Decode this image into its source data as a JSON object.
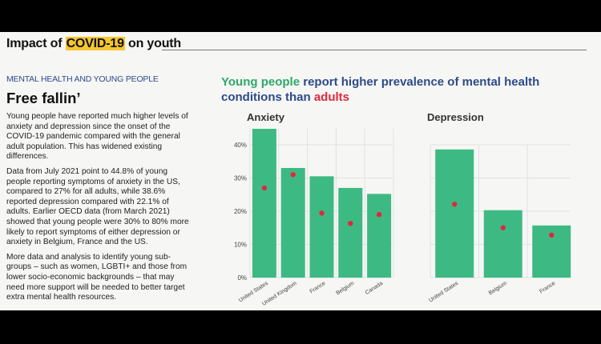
{
  "header": {
    "prefix": "Impact of",
    "highlight": "COVID-19",
    "suffix": "on youth"
  },
  "article": {
    "kicker": "MENTAL HEALTH AND YOUNG PEOPLE",
    "title": "Free fallin’",
    "paragraphs": [
      "Young people have reported much higher levels of anxiety and depression since the onset of the COVID-19 pandemic compared with the general adult population. This has widened existing differences.",
      "Data from July 2021 point to 44.8% of young people reporting symptoms of anxiety in the US, compared to 27% for all adults, while 38.6% reported depression compared with 22.1% of adults. Earlier OECD data (from March 2021) showed that young people were 30% to 80% more likely to report symptoms of either depression or anxiety in Belgium, France and the US.",
      "More data and analysis to identify young sub-groups – such as women, LGBTI+ and those from lower socio-economic backgrounds – that may need more support will be needed to better target extra mental health resources."
    ]
  },
  "chart_heading": {
    "part1": "Young people",
    "part2": "report higher prevalence of mental health conditions than",
    "part3": "adults"
  },
  "colors": {
    "young": "#3dba83",
    "adults": "#e0283d",
    "navy": "#2e4a8a",
    "highlight": "#f4c630"
  },
  "chart_data": [
    {
      "type": "bar",
      "title": "Anxiety",
      "categories": [
        "United States",
        "United Kingdom",
        "France",
        "Belgium",
        "Canada"
      ],
      "series": [
        {
          "name": "Young people",
          "values": [
            44.8,
            33,
            30.5,
            27,
            25.2
          ]
        },
        {
          "name": "adults",
          "values": [
            27,
            31,
            19.4,
            16.3,
            19
          ]
        }
      ],
      "ylim": [
        0,
        44.8
      ],
      "yticks": [
        "0%",
        "10%",
        "20%",
        "30%",
        "40%"
      ],
      "grid": true
    },
    {
      "type": "bar",
      "title": "Depression",
      "categories": [
        "United States",
        "Belgium",
        "France"
      ],
      "series": [
        {
          "name": "Young people",
          "values": [
            38.6,
            20.3,
            15.7
          ]
        },
        {
          "name": "adults",
          "values": [
            22.1,
            15,
            12.8
          ]
        }
      ],
      "ylim": [
        0,
        40
      ],
      "yticks": [],
      "grid": true
    }
  ]
}
